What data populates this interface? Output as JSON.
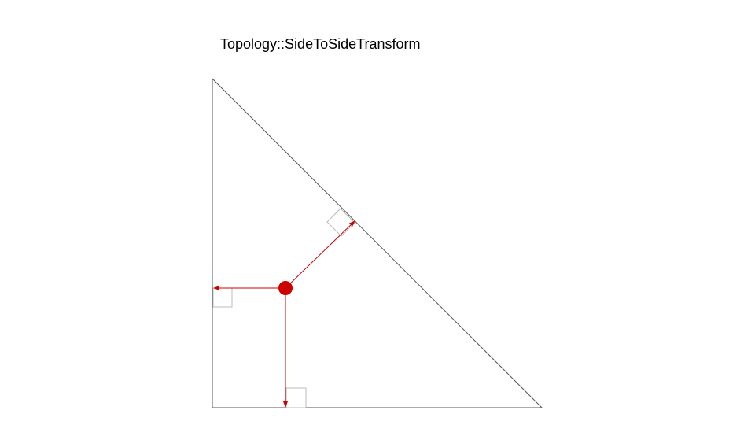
{
  "slide": {
    "title": "Topology::SideToSideTransform"
  },
  "colors": {
    "triangle_stroke": "#555555",
    "arrow": "#cc0000",
    "point": "#cc0000",
    "right_angle_marker": "#bbbbbb",
    "background": "#ffffff"
  }
}
